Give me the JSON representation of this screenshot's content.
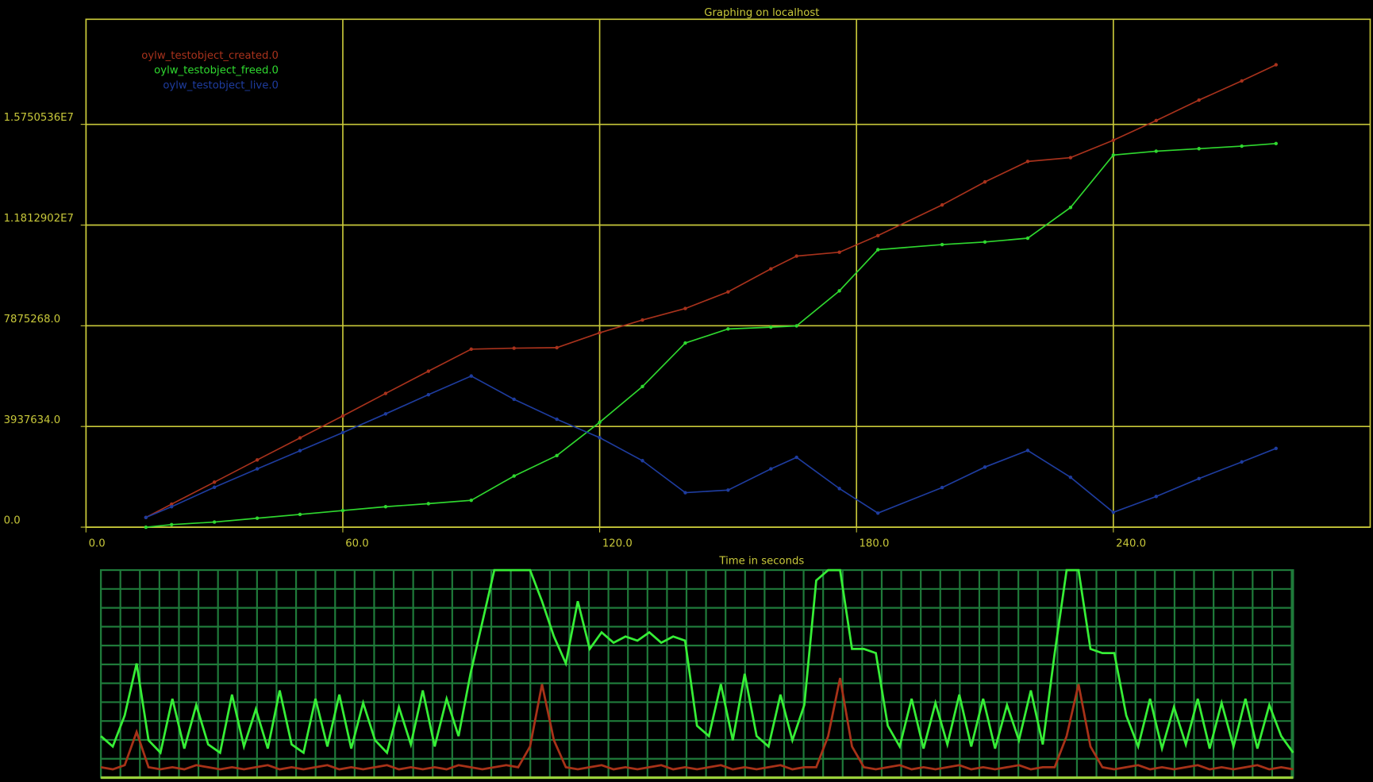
{
  "chart_data": [
    {
      "type": "line",
      "title": "Graphing on localhost",
      "x_label": "Time in seconds",
      "x": [
        14,
        20,
        30,
        40,
        50,
        60,
        70,
        80,
        90,
        100,
        110,
        120,
        130,
        140,
        150,
        160,
        166,
        176,
        185,
        200,
        210,
        220,
        230,
        240,
        250,
        260,
        270,
        278
      ],
      "series": [
        {
          "name": "oylw_testobject_created.0",
          "color": "#a8321c",
          "values": [
            380000,
            900000,
            1760000,
            2630000,
            3490000,
            4350000,
            5230000,
            6100000,
            6960000,
            7000000,
            7020000,
            7600000,
            8100000,
            8550000,
            9200000,
            10100000,
            10600000,
            10750000,
            11400000,
            12600000,
            13500000,
            14300000,
            14450000,
            15130000,
            15900000,
            16700000,
            17450000,
            18080000
          ]
        },
        {
          "name": "oylw_testobject_freed.0",
          "color": "#2fd82f",
          "values": [
            0,
            100000,
            200000,
            350000,
            500000,
            650000,
            800000,
            920000,
            1050000,
            2000000,
            2800000,
            4100000,
            5500000,
            7200000,
            7750000,
            7820000,
            7870000,
            9240000,
            10850000,
            11050000,
            11150000,
            11300000,
            12500000,
            14550000,
            14700000,
            14800000,
            14900000,
            15000000
          ]
        },
        {
          "name": "oylw_testobject_live.0",
          "color": "#1e3c9e",
          "values": [
            380000,
            800000,
            1560000,
            2280000,
            2990000,
            3700000,
            4430000,
            5180000,
            5910000,
            5000000,
            4220000,
            3500000,
            2600000,
            1350000,
            1450000,
            2280000,
            2730000,
            1510000,
            550000,
            1550000,
            2350000,
            3000000,
            1950000,
            580000,
            1200000,
            1900000,
            2550000,
            3080000
          ]
        }
      ],
      "xlim": [
        0,
        300
      ],
      "xticks": [
        {
          "value": 0,
          "label": "0.0"
        },
        {
          "value": 60,
          "label": "60.0"
        },
        {
          "value": 120,
          "label": "120.0"
        },
        {
          "value": 180,
          "label": "180.0"
        },
        {
          "value": 240,
          "label": "240.0"
        }
      ],
      "ylim": [
        0,
        19860000
      ],
      "yticks": [
        {
          "value": 0,
          "label": "0.0"
        },
        {
          "value": 3937634,
          "label": "3937634.0"
        },
        {
          "value": 7875268,
          "label": "7875268.0"
        },
        {
          "value": 11812902,
          "label": "1.1812902E7"
        },
        {
          "value": 15750536,
          "label": "1.5750536E7"
        }
      ],
      "grid": true,
      "legend": "upper left"
    },
    {
      "type": "line",
      "ylim": [
        0,
        100
      ],
      "series": [
        {
          "color": "#36ee36",
          "values": [
            20,
            15,
            30,
            55,
            18,
            12,
            38,
            14,
            35,
            16,
            12,
            40,
            15,
            33,
            14,
            42,
            16,
            12,
            38,
            15,
            40,
            14,
            36,
            18,
            12,
            34,
            16,
            42,
            15,
            38,
            20,
            50,
            75,
            100,
            100,
            100,
            100,
            85,
            68,
            55,
            85,
            62,
            70,
            65,
            68,
            66,
            70,
            65,
            68,
            66,
            25,
            20,
            45,
            18,
            50,
            20,
            15,
            40,
            18,
            35,
            95,
            100,
            100,
            62,
            62,
            60,
            25,
            15,
            38,
            14,
            36,
            16,
            40,
            15,
            38,
            14,
            35,
            18,
            42,
            16,
            60,
            100,
            100,
            62,
            60,
            60,
            30,
            15,
            38,
            14,
            34,
            16,
            38,
            14,
            36,
            15,
            38,
            14,
            35,
            20,
            12
          ]
        },
        {
          "color": "#a83218",
          "values": [
            5,
            4,
            6,
            22,
            5,
            4,
            5,
            4,
            6,
            5,
            4,
            5,
            4,
            5,
            6,
            4,
            5,
            4,
            5,
            6,
            4,
            5,
            4,
            5,
            6,
            4,
            5,
            4,
            5,
            4,
            6,
            5,
            4,
            5,
            6,
            5,
            15,
            45,
            18,
            5,
            4,
            5,
            6,
            4,
            5,
            4,
            5,
            6,
            4,
            5,
            4,
            5,
            6,
            4,
            5,
            4,
            5,
            6,
            4,
            5,
            5,
            20,
            48,
            15,
            5,
            4,
            5,
            6,
            4,
            5,
            4,
            5,
            6,
            4,
            5,
            4,
            5,
            6,
            4,
            5,
            5,
            20,
            45,
            15,
            5,
            4,
            5,
            6,
            4,
            5,
            4,
            5,
            6,
            4,
            5,
            4,
            5,
            6,
            4,
            5,
            4
          ]
        }
      ],
      "grid": true
    }
  ]
}
